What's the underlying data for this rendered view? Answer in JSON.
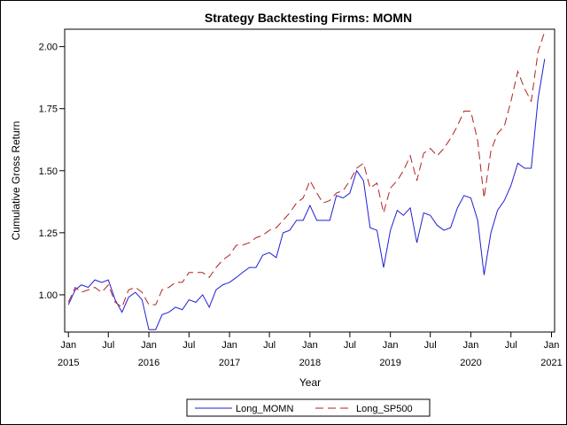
{
  "chart_data": {
    "type": "line",
    "title": "Strategy Backtesting  Firms: MOMN",
    "xlabel": "Year",
    "ylabel": "Cumulative Gross Return",
    "xlim": [
      "2014-12-15",
      "2021-01-15"
    ],
    "ylim": [
      0.85,
      2.07
    ],
    "grid": false,
    "legend_position": "bottom",
    "y_ticks": [
      {
        "value": 1.0,
        "label": "1.00"
      },
      {
        "value": 1.25,
        "label": "1.25"
      },
      {
        "value": 1.5,
        "label": "1.50"
      },
      {
        "value": 1.75,
        "label": "1.75"
      },
      {
        "value": 2.0,
        "label": "2.00"
      }
    ],
    "x_ticks": [
      {
        "date": "2015-01",
        "month": "Jan",
        "year": "2015"
      },
      {
        "date": "2015-07",
        "month": "Jul",
        "year": ""
      },
      {
        "date": "2016-01",
        "month": "Jan",
        "year": "2016"
      },
      {
        "date": "2016-07",
        "month": "Jul",
        "year": ""
      },
      {
        "date": "2017-01",
        "month": "Jan",
        "year": "2017"
      },
      {
        "date": "2017-07",
        "month": "Jul",
        "year": ""
      },
      {
        "date": "2018-01",
        "month": "Jan",
        "year": "2018"
      },
      {
        "date": "2018-07",
        "month": "Jul",
        "year": ""
      },
      {
        "date": "2019-01",
        "month": "Jan",
        "year": "2019"
      },
      {
        "date": "2019-07",
        "month": "Jul",
        "year": ""
      },
      {
        "date": "2020-01",
        "month": "Jan",
        "year": "2020"
      },
      {
        "date": "2020-07",
        "month": "Jul",
        "year": ""
      },
      {
        "date": "2021-01",
        "month": "Jan",
        "year": "2021"
      }
    ],
    "x": [
      "2015-01",
      "2015-02",
      "2015-03",
      "2015-04",
      "2015-05",
      "2015-06",
      "2015-07",
      "2015-08",
      "2015-09",
      "2015-10",
      "2015-11",
      "2015-12",
      "2016-01",
      "2016-02",
      "2016-03",
      "2016-04",
      "2016-05",
      "2016-06",
      "2016-07",
      "2016-08",
      "2016-09",
      "2016-10",
      "2016-11",
      "2016-12",
      "2017-01",
      "2017-02",
      "2017-03",
      "2017-04",
      "2017-05",
      "2017-06",
      "2017-07",
      "2017-08",
      "2017-09",
      "2017-10",
      "2017-11",
      "2017-12",
      "2018-01",
      "2018-02",
      "2018-03",
      "2018-04",
      "2018-05",
      "2018-06",
      "2018-07",
      "2018-08",
      "2018-09",
      "2018-10",
      "2018-11",
      "2018-12",
      "2019-01",
      "2019-02",
      "2019-03",
      "2019-04",
      "2019-05",
      "2019-06",
      "2019-07",
      "2019-08",
      "2019-09",
      "2019-10",
      "2019-11",
      "2019-12",
      "2020-01",
      "2020-02",
      "2020-03",
      "2020-04",
      "2020-05",
      "2020-06",
      "2020-07",
      "2020-08",
      "2020-09",
      "2020-10",
      "2020-11",
      "2020-12"
    ],
    "series": [
      {
        "name": "Long_MOMN",
        "color": "#1f1fd6",
        "dash": "solid",
        "values": [
          0.96,
          1.02,
          1.04,
          1.03,
          1.06,
          1.05,
          1.06,
          0.98,
          0.93,
          0.99,
          1.01,
          0.98,
          0.86,
          0.86,
          0.92,
          0.93,
          0.95,
          0.94,
          0.98,
          0.97,
          1.0,
          0.95,
          1.02,
          1.04,
          1.05,
          1.07,
          1.09,
          1.11,
          1.11,
          1.16,
          1.17,
          1.15,
          1.25,
          1.26,
          1.3,
          1.3,
          1.36,
          1.3,
          1.3,
          1.3,
          1.4,
          1.39,
          1.41,
          1.5,
          1.46,
          1.27,
          1.26,
          1.11,
          1.26,
          1.34,
          1.32,
          1.35,
          1.21,
          1.33,
          1.32,
          1.28,
          1.26,
          1.27,
          1.35,
          1.4,
          1.39,
          1.3,
          1.08,
          1.25,
          1.34,
          1.38,
          1.44,
          1.53,
          1.51,
          1.51,
          1.79,
          1.95
        ]
      },
      {
        "name": "Long_SP500",
        "color": "#b22222",
        "dash": "dashed",
        "values": [
          0.97,
          1.03,
          1.01,
          1.02,
          1.03,
          1.01,
          1.04,
          0.97,
          0.95,
          1.02,
          1.03,
          1.01,
          0.96,
          0.96,
          1.02,
          1.03,
          1.05,
          1.05,
          1.09,
          1.09,
          1.09,
          1.07,
          1.11,
          1.14,
          1.16,
          1.2,
          1.2,
          1.21,
          1.23,
          1.24,
          1.26,
          1.27,
          1.3,
          1.33,
          1.37,
          1.39,
          1.46,
          1.41,
          1.37,
          1.38,
          1.41,
          1.42,
          1.46,
          1.51,
          1.53,
          1.43,
          1.45,
          1.33,
          1.43,
          1.46,
          1.5,
          1.56,
          1.46,
          1.57,
          1.59,
          1.56,
          1.59,
          1.63,
          1.68,
          1.74,
          1.74,
          1.62,
          1.39,
          1.58,
          1.65,
          1.68,
          1.78,
          1.9,
          1.83,
          1.78,
          1.98,
          2.06
        ]
      }
    ]
  }
}
